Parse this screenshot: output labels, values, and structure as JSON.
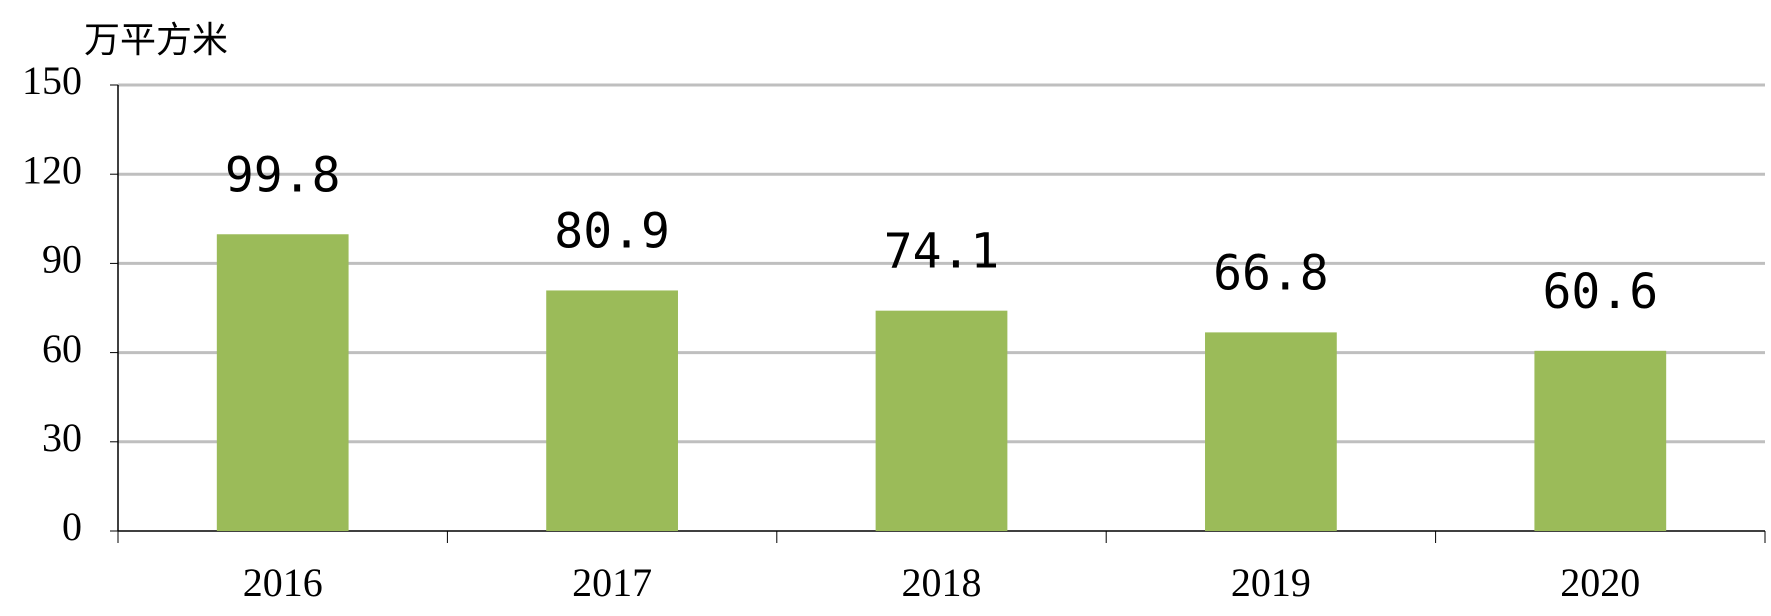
{
  "chart_data": {
    "type": "bar",
    "y_axis_label": "万平方米",
    "categories": [
      "2016",
      "2017",
      "2018",
      "2019",
      "2020"
    ],
    "values": [
      99.8,
      80.9,
      74.1,
      66.8,
      60.6
    ],
    "color": "#9bbb59",
    "ylim": [
      0,
      150
    ],
    "yticks": [
      0,
      30,
      60,
      90,
      120,
      150
    ],
    "grid": true
  }
}
